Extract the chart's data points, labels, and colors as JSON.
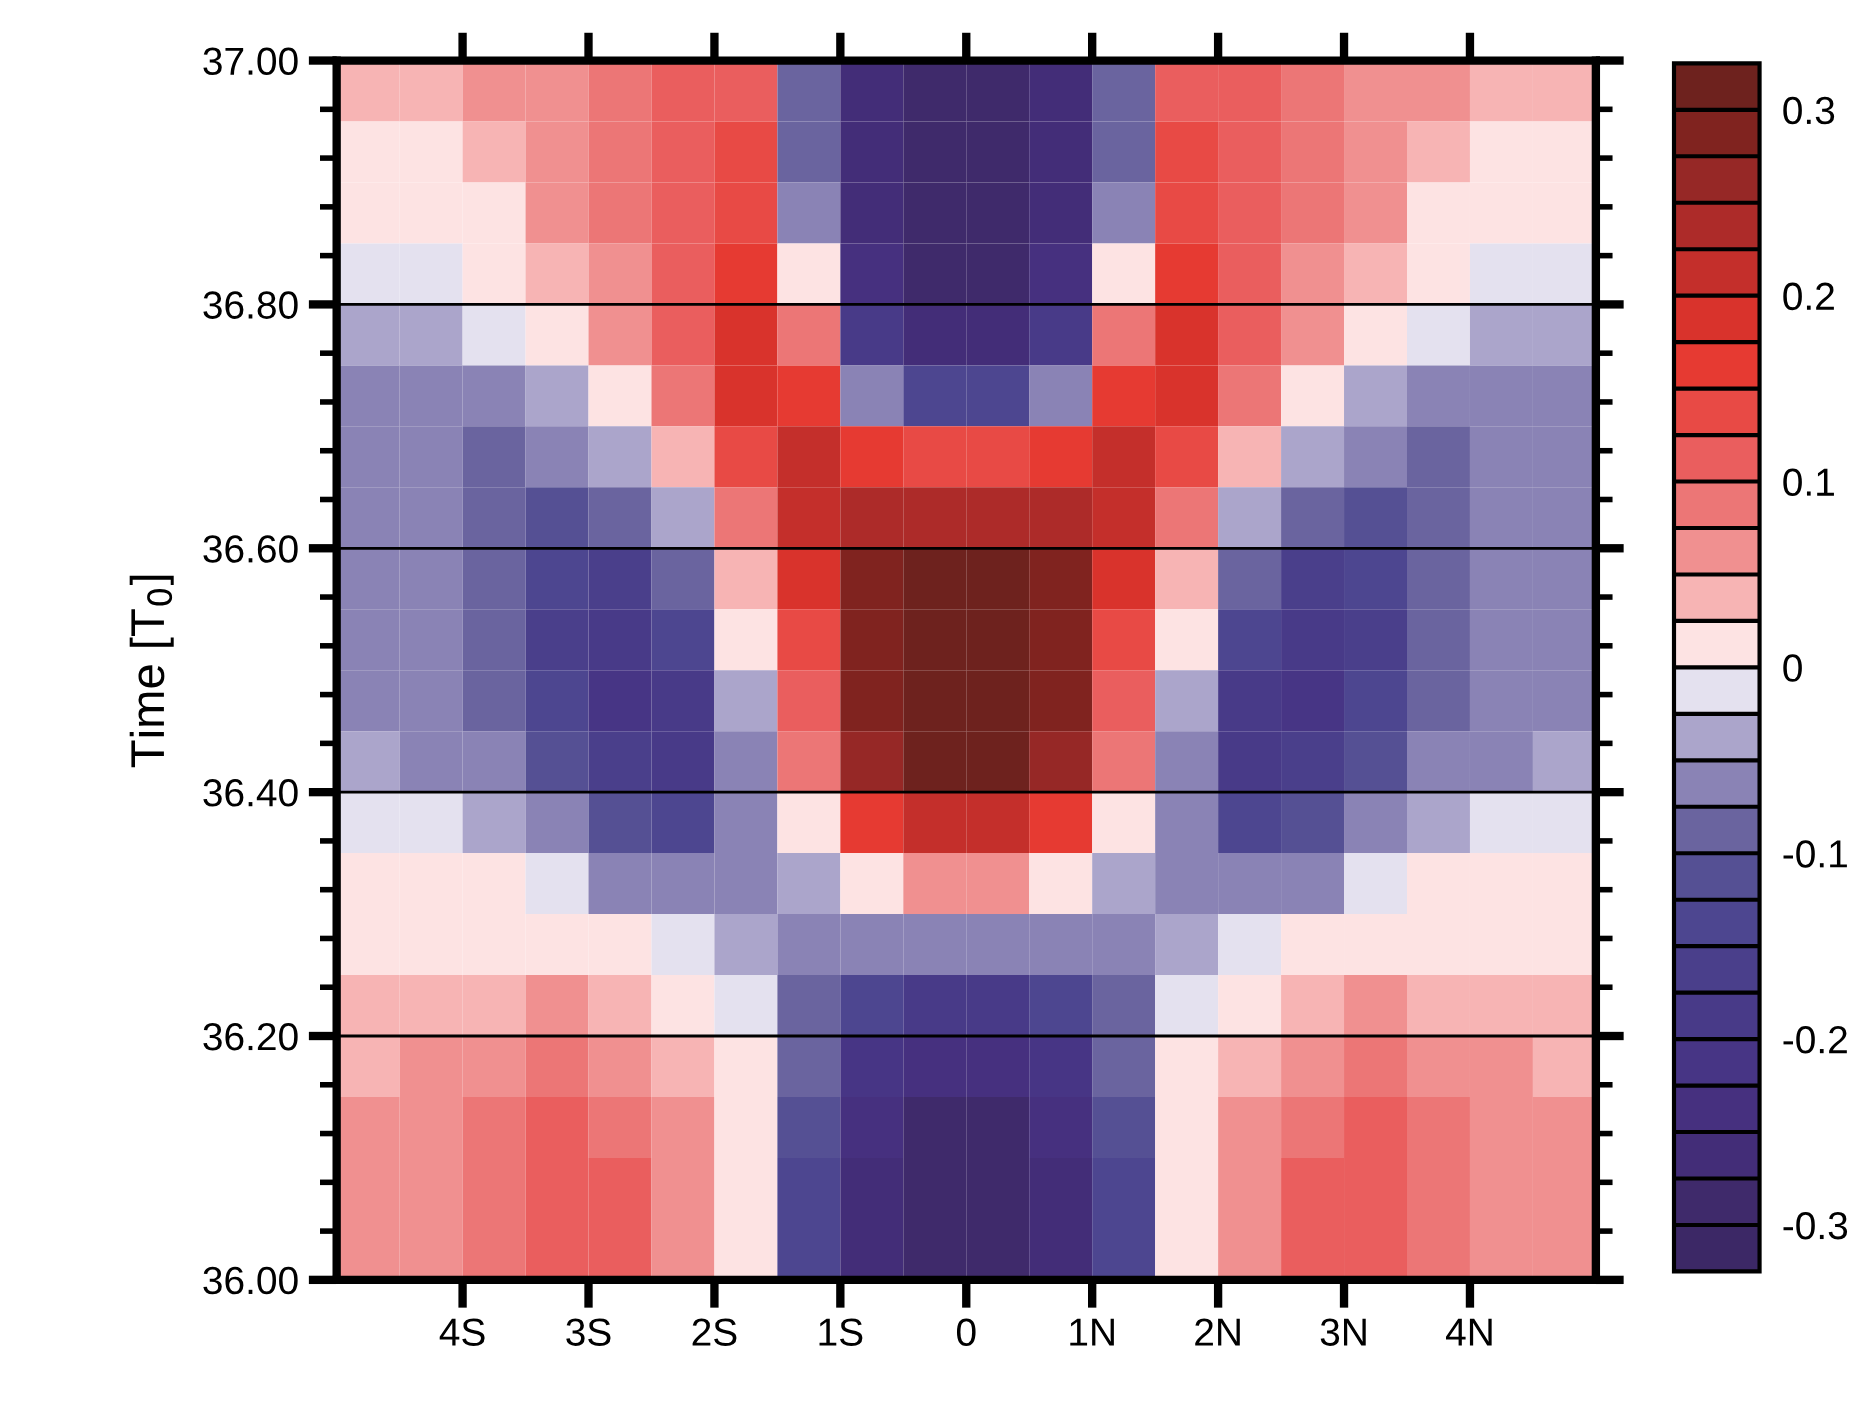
{
  "chart_data": {
    "type": "heatmap",
    "ylabel": "Time [T$_{0}$]",
    "xlim": [
      -5,
      5
    ],
    "xticks": [
      {
        "value": -4,
        "label": "4S"
      },
      {
        "value": -3,
        "label": "3S"
      },
      {
        "value": -2,
        "label": "2S"
      },
      {
        "value": -1,
        "label": "1S"
      },
      {
        "value": 0,
        "label": "0"
      },
      {
        "value": 1,
        "label": "1N"
      },
      {
        "value": 2,
        "label": "2N"
      },
      {
        "value": 3,
        "label": "3N"
      },
      {
        "value": 4,
        "label": "4N"
      }
    ],
    "ylim": [
      36,
      37
    ],
    "yticks": [
      {
        "value": 36,
        "label": "36.00"
      },
      {
        "value": 36.2,
        "label": "36.20"
      },
      {
        "value": 36.4,
        "label": "36.40"
      },
      {
        "value": 36.6,
        "label": "36.60"
      },
      {
        "value": 36.8,
        "label": "36.80"
      },
      {
        "value": 37,
        "label": "37.00"
      }
    ],
    "grid": "y",
    "x": [
      -4.75,
      -4.25,
      -3.75,
      -3.25,
      -2.75,
      -2.25,
      -1.75,
      -1.25,
      -0.75,
      -0.25,
      0.25,
      0.75,
      1.25,
      1.75,
      2.25,
      2.75,
      3.25,
      3.75,
      4.25,
      4.75
    ],
    "y": [
      36.975,
      36.925,
      36.875,
      36.825,
      36.775,
      36.725,
      36.675,
      36.625,
      36.575,
      36.525,
      36.475,
      36.425,
      36.375,
      36.325,
      36.275,
      36.225,
      36.175,
      36.125,
      36.075,
      36.025
    ],
    "clim": [
      -0.325,
      0.325
    ],
    "cticks": [
      -0.3,
      -0.2,
      -0.1,
      0,
      0.1,
      0.2,
      0.3
    ],
    "colors": [
      "#3c2866",
      "#3f2a6b",
      "#432d78",
      "#46307f",
      "#473585",
      "#483a88",
      "#4a3f8b",
      "#4d4690",
      "#555094",
      "#6a649f",
      "#8a83b5",
      "#aba5cb",
      "#e4e1ef",
      "#fde3e3",
      "#f7b4b4",
      "#f09090",
      "#ec7676",
      "#ea5e5e",
      "#e84a45",
      "#e63a32",
      "#d9332c",
      "#c42f2b",
      "#ad2b29",
      "#962826",
      "#80231f",
      "#6e221e"
    ],
    "cells": [
      [
        0.04,
        0.04,
        0.05,
        0.07,
        0.1,
        0.12,
        0.12,
        -0.1,
        -0.27,
        -0.3,
        -0.3,
        -0.27,
        -0.1,
        0.12,
        0.12,
        0.1,
        0.07,
        0.05,
        0.04,
        0.04
      ],
      [
        0.02,
        0.02,
        0.04,
        0.06,
        0.1,
        0.12,
        0.13,
        -0.08,
        -0.27,
        -0.3,
        -0.3,
        -0.27,
        -0.08,
        0.13,
        0.12,
        0.1,
        0.06,
        0.04,
        0.02,
        0.02
      ],
      [
        0.01,
        0.01,
        0.02,
        0.05,
        0.09,
        0.12,
        0.14,
        -0.05,
        -0.26,
        -0.3,
        -0.3,
        -0.26,
        -0.05,
        0.14,
        0.12,
        0.09,
        0.05,
        0.02,
        0.01,
        0.01
      ],
      [
        -0.01,
        -0.01,
        0.0,
        0.03,
        0.07,
        0.12,
        0.16,
        0.0,
        -0.24,
        -0.29,
        -0.29,
        -0.24,
        0.0,
        0.16,
        0.12,
        0.07,
        0.03,
        0.0,
        -0.01,
        -0.01
      ],
      [
        -0.03,
        -0.03,
        -0.02,
        0.01,
        0.05,
        0.11,
        0.18,
        0.08,
        -0.18,
        -0.27,
        -0.27,
        -0.18,
        0.08,
        0.18,
        0.11,
        0.05,
        0.01,
        -0.02,
        -0.03,
        -0.03
      ],
      [
        -0.05,
        -0.05,
        -0.05,
        -0.03,
        0.02,
        0.08,
        0.18,
        0.17,
        -0.05,
        -0.15,
        -0.15,
        -0.05,
        0.17,
        0.18,
        0.08,
        0.02,
        -0.03,
        -0.05,
        -0.05,
        -0.05
      ],
      [
        -0.05,
        -0.06,
        -0.08,
        -0.07,
        -0.03,
        0.03,
        0.15,
        0.2,
        0.17,
        0.15,
        0.15,
        0.17,
        0.2,
        0.15,
        0.03,
        -0.03,
        -0.07,
        -0.08,
        -0.06,
        -0.05
      ],
      [
        -0.05,
        -0.06,
        -0.09,
        -0.11,
        -0.1,
        -0.04,
        0.1,
        0.2,
        0.24,
        0.25,
        0.25,
        0.24,
        0.2,
        0.1,
        -0.04,
        -0.1,
        -0.11,
        -0.09,
        -0.06,
        -0.05
      ],
      [
        -0.05,
        -0.07,
        -0.1,
        -0.14,
        -0.17,
        -0.1,
        0.04,
        0.18,
        0.28,
        0.3,
        0.3,
        0.28,
        0.18,
        0.04,
        -0.1,
        -0.17,
        -0.14,
        -0.1,
        -0.07,
        -0.05
      ],
      [
        -0.05,
        -0.07,
        -0.1,
        -0.16,
        -0.2,
        -0.14,
        0.0,
        0.15,
        0.29,
        0.32,
        0.32,
        0.29,
        0.15,
        0.0,
        -0.14,
        -0.2,
        -0.16,
        -0.1,
        -0.07,
        -0.05
      ],
      [
        -0.05,
        -0.06,
        -0.09,
        -0.15,
        -0.21,
        -0.18,
        -0.03,
        0.12,
        0.28,
        0.32,
        0.32,
        0.28,
        0.12,
        -0.03,
        -0.18,
        -0.21,
        -0.15,
        -0.09,
        -0.06,
        -0.05
      ],
      [
        -0.04,
        -0.05,
        -0.07,
        -0.12,
        -0.17,
        -0.18,
        -0.05,
        0.08,
        0.26,
        0.3,
        0.3,
        0.26,
        0.08,
        -0.05,
        -0.18,
        -0.17,
        -0.12,
        -0.07,
        -0.05,
        -0.04
      ],
      [
        -0.01,
        -0.02,
        -0.04,
        -0.07,
        -0.11,
        -0.13,
        -0.07,
        0.02,
        0.17,
        0.22,
        0.22,
        0.17,
        0.02,
        -0.07,
        -0.13,
        -0.11,
        -0.07,
        -0.04,
        -0.02,
        -0.01
      ],
      [
        0.01,
        0.01,
        0.0,
        -0.02,
        -0.05,
        -0.07,
        -0.06,
        -0.04,
        0.02,
        0.05,
        0.05,
        0.02,
        -0.04,
        -0.06,
        -0.07,
        -0.05,
        -0.02,
        0.0,
        0.01,
        0.01
      ],
      [
        0.02,
        0.02,
        0.02,
        0.02,
        0.01,
        -0.01,
        -0.03,
        -0.05,
        -0.07,
        -0.07,
        -0.07,
        -0.07,
        -0.05,
        -0.03,
        -0.01,
        0.01,
        0.02,
        0.02,
        0.02,
        0.02
      ],
      [
        0.03,
        0.03,
        0.04,
        0.05,
        0.04,
        0.02,
        -0.01,
        -0.08,
        -0.15,
        -0.18,
        -0.18,
        -0.15,
        -0.08,
        -0.01,
        0.02,
        0.04,
        0.05,
        0.04,
        0.03,
        0.03
      ],
      [
        0.04,
        0.05,
        0.06,
        0.08,
        0.07,
        0.04,
        0.0,
        -0.1,
        -0.22,
        -0.25,
        -0.25,
        -0.22,
        -0.1,
        0.0,
        0.04,
        0.07,
        0.08,
        0.06,
        0.05,
        0.04
      ],
      [
        0.05,
        0.06,
        0.08,
        0.11,
        0.1,
        0.05,
        0.01,
        -0.12,
        -0.25,
        -0.28,
        -0.28,
        -0.25,
        -0.12,
        0.01,
        0.05,
        0.1,
        0.11,
        0.08,
        0.06,
        0.05
      ],
      [
        0.05,
        0.07,
        0.09,
        0.12,
        0.11,
        0.06,
        0.01,
        -0.13,
        -0.26,
        -0.29,
        -0.29,
        -0.26,
        -0.13,
        0.01,
        0.06,
        0.11,
        0.12,
        0.09,
        0.07,
        0.05
      ],
      [
        0.05,
        0.06,
        0.09,
        0.12,
        0.11,
        0.06,
        0.01,
        -0.13,
        -0.26,
        -0.29,
        -0.29,
        -0.26,
        -0.13,
        0.01,
        0.06,
        0.11,
        0.12,
        0.09,
        0.06,
        0.05
      ]
    ]
  }
}
